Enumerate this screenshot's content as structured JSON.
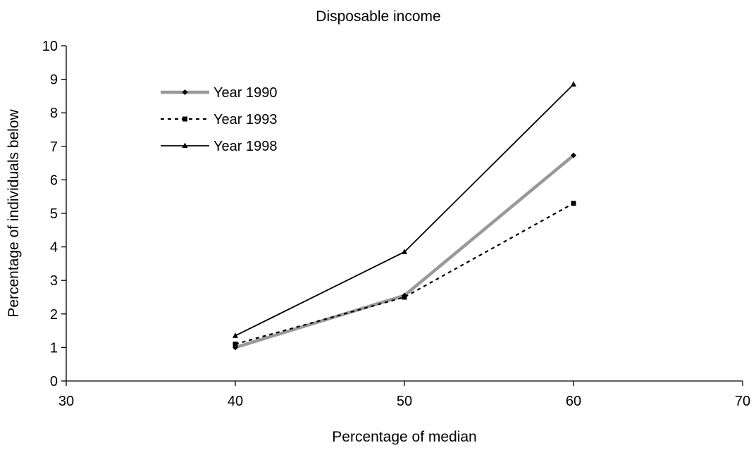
{
  "chart_data": {
    "type": "line",
    "title": "Disposable income",
    "xlabel": "Percentage of median",
    "ylabel": "Percentage of individuals below",
    "xlim": [
      30,
      70
    ],
    "ylim": [
      0,
      10
    ],
    "xticks": [
      30,
      40,
      50,
      60,
      70
    ],
    "yticks": [
      0,
      1,
      2,
      3,
      4,
      5,
      6,
      7,
      8,
      9,
      10
    ],
    "grid": false,
    "legend_position": "top-left",
    "series": [
      {
        "name": "Year 1990",
        "x": [
          40,
          50,
          60
        ],
        "y": [
          1.0,
          2.55,
          6.73
        ],
        "color": "#999999",
        "line_style": "solid-thick",
        "marker": "diamond"
      },
      {
        "name": "Year 1993",
        "x": [
          40,
          50,
          60
        ],
        "y": [
          1.1,
          2.5,
          5.3
        ],
        "color": "#000000",
        "line_style": "dotted",
        "marker": "square"
      },
      {
        "name": "Year 1998",
        "x": [
          40,
          50,
          60
        ],
        "y": [
          1.35,
          3.85,
          8.85
        ],
        "color": "#000000",
        "line_style": "solid-thin",
        "marker": "triangle"
      }
    ]
  }
}
